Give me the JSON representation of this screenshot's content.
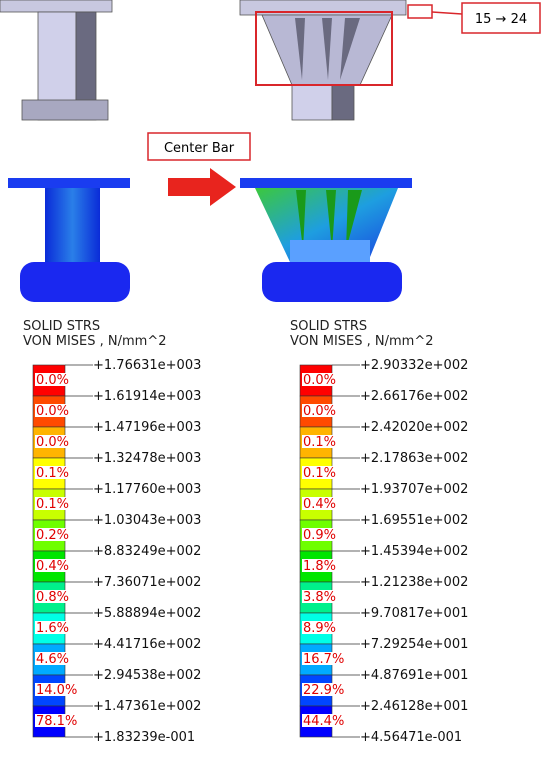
{
  "annotations": {
    "thickness_change": "15 → 24",
    "center_bar": "Center Bar"
  },
  "band_colors": [
    "#ff0000",
    "#ff4a00",
    "#ffb400",
    "#ffff00",
    "#c8ff00",
    "#6eff00",
    "#00e600",
    "#00f08c",
    "#00ffe6",
    "#00aaff",
    "#0046ff",
    "#0000ff"
  ],
  "legends": [
    {
      "title": "SOLID STRS",
      "subtitle": "VON MISES , N/mm^2",
      "levels": [
        "+1.76631e+003",
        "+1.61914e+003",
        "+1.47196e+003",
        "+1.32478e+003",
        "+1.17760e+003",
        "+1.03043e+003",
        "+8.83249e+002",
        "+7.36071e+002",
        "+5.88894e+002",
        "+4.41716e+002",
        "+2.94538e+002",
        "+1.47361e+002",
        "+1.83239e-001"
      ],
      "percentages": [
        "0.0%",
        "0.0%",
        "0.0%",
        "0.1%",
        "0.1%",
        "0.2%",
        "0.4%",
        "0.8%",
        "1.6%",
        "4.6%",
        "14.0%",
        "78.1%"
      ]
    },
    {
      "title": "SOLID STRS",
      "subtitle": "VON MISES , N/mm^2",
      "levels": [
        "+2.90332e+002",
        "+2.66176e+002",
        "+2.42020e+002",
        "+2.17863e+002",
        "+1.93707e+002",
        "+1.69551e+002",
        "+1.45394e+002",
        "+1.21238e+002",
        "+9.70817e+001",
        "+7.29254e+001",
        "+4.87691e+001",
        "+2.46128e+001",
        "+4.56471e-001"
      ],
      "percentages": [
        "0.0%",
        "0.0%",
        "0.1%",
        "0.1%",
        "0.4%",
        "0.9%",
        "1.8%",
        "3.8%",
        "8.9%",
        "16.7%",
        "22.9%",
        "44.4%"
      ]
    }
  ]
}
